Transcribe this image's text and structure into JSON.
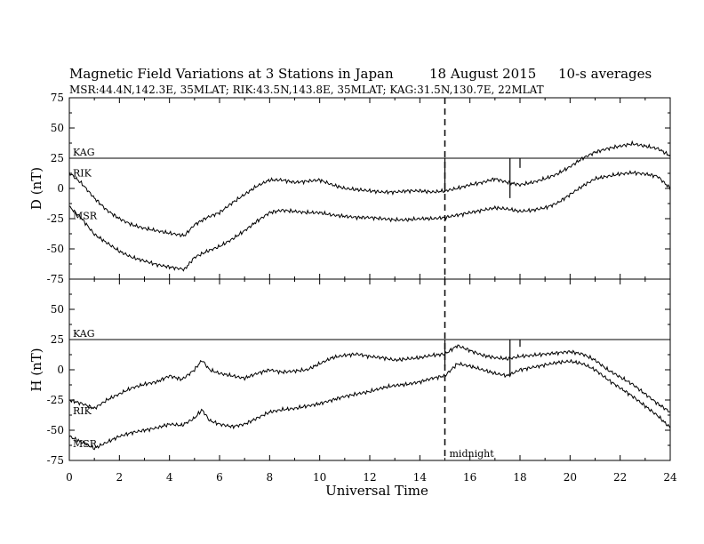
{
  "chart_data": {
    "type": "line",
    "title": "Magnetic Field Variations at 3 Stations in Japan",
    "date": "18  August  2015",
    "averaging": "10-s averages",
    "subtitle": "MSR:44.4N,142.3E, 35MLAT;   RIK:43.5N,143.8E, 35MLAT;   KAG:31.5N,130.7E, 22MLAT",
    "xlabel": "Universal Time",
    "xlim": [
      0,
      24
    ],
    "xticks": [
      "0",
      "2",
      "4",
      "6",
      "8",
      "10",
      "12",
      "14",
      "16",
      "18",
      "20",
      "22",
      "24"
    ],
    "yticks": [
      "75",
      "50",
      "25",
      "0",
      "-25",
      "-50",
      "-75"
    ],
    "annotation": {
      "x": 15,
      "text": "midnight"
    },
    "panels": [
      {
        "ylabel": "D (nT)",
        "ylim": [
          -75,
          75
        ],
        "series": [
          {
            "name": "KAG",
            "x": [
              0,
              24
            ],
            "y": [
              25,
              25
            ],
            "spikes": [
              {
                "x": 15.0,
                "y2": -3
              },
              {
                "x": 17.6,
                "y2": -8
              },
              {
                "x": 18.0,
                "y2": 17
              }
            ]
          },
          {
            "name": "RIK",
            "x": [
              0,
              0.5,
              1,
              1.5,
              2,
              2.5,
              3,
              3.5,
              4,
              4.6,
              5,
              5.5,
              6,
              6.5,
              7,
              7.5,
              8,
              8.5,
              9,
              9.5,
              10,
              10.5,
              11,
              11.5,
              12,
              12.5,
              13,
              13.5,
              14,
              14.5,
              15,
              15.5,
              16,
              16.5,
              17,
              17.5,
              18,
              18.5,
              19,
              19.5,
              20,
              20.5,
              21,
              21.5,
              22,
              22.5,
              23,
              23.5,
              24
            ],
            "y": [
              13,
              4,
              -8,
              -18,
              -25,
              -30,
              -33,
              -35,
              -37,
              -39,
              -30,
              -24,
              -20,
              -12,
              -5,
              2,
              7,
              7,
              5,
              6,
              7,
              3,
              0,
              -1,
              -2,
              -3,
              -3,
              -2,
              -2,
              -3,
              -2,
              0,
              3,
              5,
              8,
              5,
              3,
              5,
              8,
              12,
              18,
              25,
              30,
              33,
              35,
              37,
              35,
              33,
              27
            ]
          },
          {
            "name": "MSR",
            "x": [
              0,
              0.5,
              1,
              1.5,
              2,
              2.5,
              3,
              3.5,
              4,
              4.6,
              5,
              5.5,
              6,
              6.5,
              7,
              7.5,
              8,
              8.5,
              9,
              9.5,
              10,
              10.5,
              11,
              11.5,
              12,
              12.5,
              13,
              13.5,
              14,
              14.5,
              15,
              15.5,
              16,
              16.5,
              17,
              17.5,
              18,
              18.5,
              19,
              19.5,
              20,
              20.5,
              21,
              21.5,
              22,
              22.5,
              23,
              23.5,
              24
            ],
            "y": [
              -15,
              -25,
              -38,
              -45,
              -52,
              -57,
              -60,
              -63,
              -65,
              -67,
              -57,
              -52,
              -48,
              -42,
              -35,
              -27,
              -20,
              -18,
              -19,
              -20,
              -20,
              -22,
              -23,
              -24,
              -24,
              -25,
              -26,
              -26,
              -25,
              -25,
              -24,
              -22,
              -20,
              -18,
              -16,
              -17,
              -19,
              -18,
              -16,
              -12,
              -5,
              2,
              8,
              10,
              12,
              13,
              12,
              10,
              0
            ]
          }
        ]
      },
      {
        "ylabel": "H (nT)",
        "ylim": [
          -75,
          75
        ],
        "series": [
          {
            "name": "KAG",
            "x": [
              0,
              24
            ],
            "y": [
              25,
              25
            ],
            "spikes": [
              {
                "x": 15.0,
                "y2": 3
              },
              {
                "x": 17.6,
                "y2": -4
              },
              {
                "x": 18.0,
                "y2": 19
              }
            ]
          },
          {
            "name": "RIK",
            "x": [
              0,
              0.5,
              1,
              1.5,
              2,
              2.5,
              3,
              3.5,
              4,
              4.5,
              5,
              5.3,
              5.6,
              6,
              6.5,
              7,
              7.5,
              8,
              8.5,
              9,
              9.5,
              10,
              10.5,
              11,
              11.5,
              12,
              12.5,
              13,
              13.5,
              14,
              14.5,
              15,
              15.5,
              16,
              16.5,
              17,
              17.5,
              18,
              18.5,
              19,
              19.5,
              20,
              20.5,
              21,
              21.5,
              22,
              22.5,
              23,
              23.5,
              24
            ],
            "y": [
              -25,
              -28,
              -32,
              -25,
              -20,
              -15,
              -12,
              -10,
              -5,
              -8,
              0,
              8,
              0,
              -3,
              -5,
              -7,
              -3,
              0,
              -2,
              -1,
              0,
              5,
              10,
              12,
              13,
              11,
              10,
              8,
              9,
              10,
              12,
              13,
              20,
              16,
              12,
              10,
              9,
              11,
              12,
              13,
              14,
              15,
              13,
              8,
              0,
              -6,
              -12,
              -20,
              -28,
              -35
            ]
          },
          {
            "name": "MSR",
            "x": [
              0,
              0.5,
              1,
              1.5,
              2,
              2.5,
              3,
              3.5,
              4,
              4.5,
              5,
              5.3,
              5.6,
              6,
              6.5,
              7,
              7.5,
              8,
              8.5,
              9,
              9.5,
              10,
              10.5,
              11,
              11.5,
              12,
              12.5,
              13,
              13.5,
              14,
              14.5,
              15,
              15.5,
              16,
              16.5,
              17,
              17.5,
              18,
              18.5,
              19,
              19.5,
              20,
              20.5,
              21,
              21.5,
              22,
              22.5,
              23,
              23.5,
              24
            ],
            "y": [
              -55,
              -60,
              -65,
              -60,
              -55,
              -52,
              -50,
              -48,
              -45,
              -46,
              -40,
              -33,
              -42,
              -45,
              -47,
              -45,
              -40,
              -35,
              -33,
              -32,
              -30,
              -28,
              -25,
              -22,
              -20,
              -18,
              -15,
              -13,
              -12,
              -10,
              -7,
              -5,
              5,
              3,
              0,
              -3,
              -5,
              0,
              2,
              4,
              6,
              7,
              5,
              0,
              -8,
              -15,
              -22,
              -30,
              -38,
              -48
            ]
          }
        ]
      }
    ]
  }
}
